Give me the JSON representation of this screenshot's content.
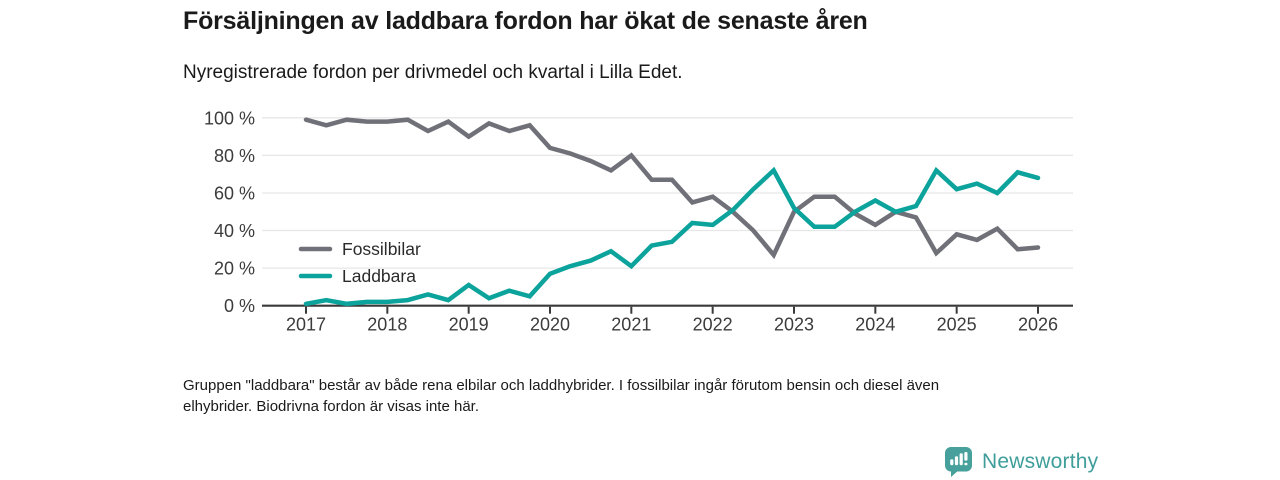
{
  "header": {
    "title": "Försäljningen av laddbara fordon har ökat de senaste åren",
    "subtitle": "Nyregistrerade fordon per drivmedel och kvartal i Lilla Edet."
  },
  "chart_data": {
    "type": "line",
    "title": "Försäljningen av laddbara fordon har ökat de senaste åren",
    "subtitle": "Nyregistrerade fordon per drivmedel och kvartal i Lilla Edet.",
    "x_unit": "quarter",
    "x_start": "2017 Q1",
    "x_end": "2026 Q1",
    "x_tick_labels": [
      "2017",
      "2018",
      "2019",
      "2020",
      "2021",
      "2022",
      "2023",
      "2024",
      "2025",
      "2026"
    ],
    "y_tick_values": [
      0,
      20,
      40,
      60,
      80,
      100
    ],
    "y_tick_labels": [
      "0 %",
      "20 %",
      "40 %",
      "60 %",
      "80 %",
      "100 %"
    ],
    "ylim": [
      0,
      100
    ],
    "grid": "horizontal",
    "legend_position": "inside-bottom-left",
    "colors": {
      "axis": "#3a3a3a",
      "gridline": "#e7e7e7",
      "tick_label": "#3c3c3c",
      "legend_label": "#2b2b2b"
    },
    "series": [
      {
        "name": "Fossilbilar",
        "color": "#707078",
        "values": [
          99,
          96,
          99,
          98,
          98,
          99,
          93,
          98,
          90,
          97,
          93,
          96,
          84,
          81,
          77,
          72,
          80,
          67,
          67,
          55,
          58,
          50,
          40,
          27,
          50,
          58,
          58,
          49,
          43,
          50,
          47,
          28,
          38,
          35,
          41,
          30,
          31
        ]
      },
      {
        "name": "Laddbara",
        "color": "#0ba39b",
        "values": [
          1,
          3,
          1,
          2,
          2,
          3,
          6,
          3,
          11,
          4,
          8,
          5,
          17,
          21,
          24,
          29,
          21,
          32,
          34,
          44,
          43,
          51,
          62,
          72,
          52,
          42,
          42,
          50,
          56,
          50,
          53,
          72,
          62,
          65,
          60,
          71,
          68
        ]
      }
    ]
  },
  "footnote": {
    "text": "Gruppen \"laddbara\" består av både rena elbilar och laddhybrider. I fossilbilar ingår förutom bensin och diesel även\nelhybrider. Biodrivna fordon är visas inte här."
  },
  "branding": {
    "logo_text": "Newsworthy",
    "logo_color": "#3f9e9a",
    "badge_color": "#47a09b"
  }
}
